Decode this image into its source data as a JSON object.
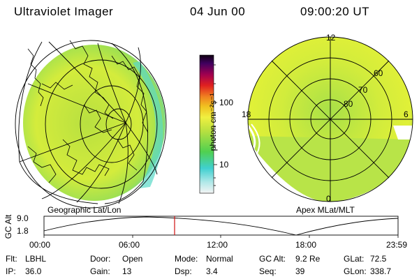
{
  "header": {
    "title": "Ultraviolet Imager",
    "date": "04 Jun 00",
    "time": "09:00:20 UT"
  },
  "colorbar": {
    "unit_label": "photon cm⁻²s⁻¹",
    "ticks": [
      "100",
      "10"
    ]
  },
  "geo_panel": {
    "label": "Geographic Lat/Lon"
  },
  "polar_panel": {
    "label": "Apex MLat/MLT",
    "mlt_labels": {
      "top": "12",
      "left": "18",
      "right": "6",
      "bottom": "0"
    },
    "mlat_labels": [
      "60",
      "70",
      "80"
    ]
  },
  "orbit_plot": {
    "ylabel": "GC Alt",
    "yticks": [
      "9.0",
      "1.8"
    ],
    "xticks": [
      "00:00",
      "06:00",
      "12:00",
      "18:00",
      "23:59"
    ],
    "current_time_marker": "09:00"
  },
  "info": {
    "row1": [
      {
        "key": "Flt:",
        "value": "LBHL"
      },
      {
        "key": "Door:",
        "value": "Open"
      },
      {
        "key": "Mode:",
        "value": "Normal"
      },
      {
        "key": "GC Alt:",
        "value": "9.2 Re"
      },
      {
        "key": "GLat:",
        "value": "72.5"
      }
    ],
    "row2": [
      {
        "key": "IP:",
        "value": "36.0"
      },
      {
        "key": "Gain:",
        "value": "13"
      },
      {
        "key": "Dsp:",
        "value": "3.4"
      },
      {
        "key": "Seq:",
        "value": "39"
      },
      {
        "key": "GLon:",
        "value": "338.7"
      }
    ]
  },
  "colors": {
    "emission_main": "#c8e83a",
    "emission_edge": "#5ad8c8",
    "marker": "#d01010"
  }
}
